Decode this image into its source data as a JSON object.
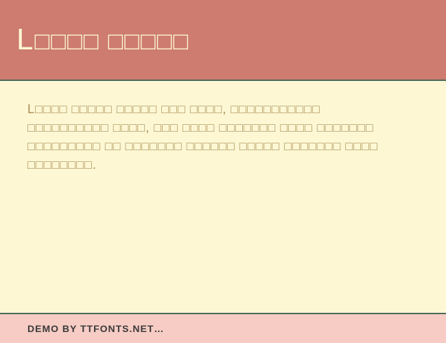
{
  "colors": {
    "header_bg": "#cd7c6f",
    "header_text": "#fdf7d4",
    "divider": "#4a6a5a",
    "body_bg": "#fdf7d4",
    "body_text": "#a78e52",
    "footer_bg": "#f6ccc4",
    "footer_text": "#3a3a3a"
  },
  "header": {
    "title_first_char": "L",
    "title_rest": "□□□□ □□□□□"
  },
  "body": {
    "first_char": "L",
    "paragraph": "□□□□ □□□□□ □□□□□ □□□ □□□□, □□□□□□□□□□□ □□□□□□□□□□ □□□□, □□□ □□□□ □□□□□□□ □□□□ □□□□□□□ □□□□□□□□□ □□ □□□□□□□ □□□□□□ □□□□□ □□□□□□□ □□□□ □□□□□□□□."
  },
  "footer": {
    "text": "DEMO BY TTFONTS.NET…"
  }
}
